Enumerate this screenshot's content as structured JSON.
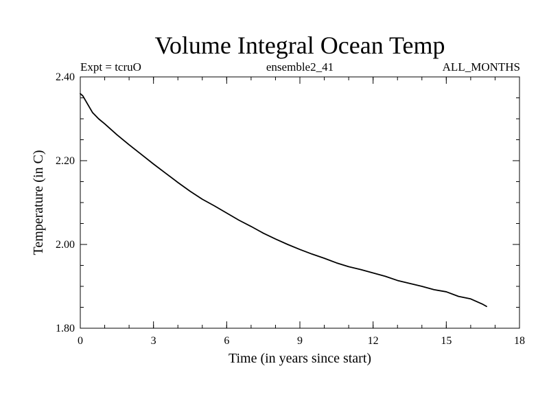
{
  "chart_data": {
    "type": "line",
    "title": "Volume Integral Ocean Temp",
    "subtitle_left": "Expt = tcruO",
    "subtitle_center": "ensemble2_41",
    "subtitle_right": "ALL_MONTHS",
    "xlabel": "Time (in years since start)",
    "ylabel": "Temperature (in C)",
    "xlim": [
      0,
      18
    ],
    "ylim": [
      1.8,
      2.4
    ],
    "x_ticks": [
      0,
      3,
      6,
      9,
      12,
      15,
      18
    ],
    "x_tick_labels": [
      "0",
      "3",
      "6",
      "9",
      "12",
      "15",
      "18"
    ],
    "y_ticks": [
      1.8,
      2.0,
      2.2,
      2.4
    ],
    "y_tick_labels": [
      "1.80",
      "2.00",
      "2.20",
      "2.40"
    ],
    "x_minor_step": 1,
    "y_minor_step": 0.05,
    "grid": false,
    "line_color": "#000000",
    "series": [
      {
        "x": [
          0,
          0.1,
          0.25,
          0.5,
          0.75,
          1,
          1.5,
          2,
          2.5,
          3,
          3.5,
          4,
          4.5,
          5,
          5.5,
          6,
          6.5,
          7,
          7.5,
          8,
          8.5,
          9,
          9.5,
          10,
          10.5,
          11,
          11.5,
          12,
          12.5,
          13,
          13.5,
          14,
          14.5,
          15,
          15.5,
          16,
          16.5,
          16.65
        ],
        "values": [
          2.36,
          2.355,
          2.34,
          2.315,
          2.3,
          2.288,
          2.262,
          2.238,
          2.215,
          2.192,
          2.17,
          2.148,
          2.127,
          2.108,
          2.092,
          2.075,
          2.058,
          2.043,
          2.027,
          2.013,
          2.0,
          1.988,
          1.977,
          1.967,
          1.956,
          1.947,
          1.94,
          1.932,
          1.924,
          1.914,
          1.907,
          1.9,
          1.892,
          1.887,
          1.876,
          1.87,
          1.857,
          1.852
        ]
      }
    ]
  }
}
